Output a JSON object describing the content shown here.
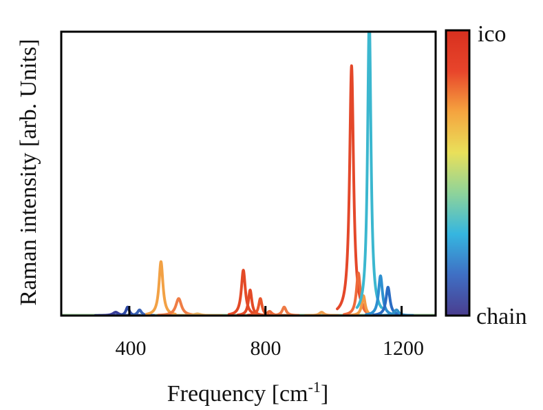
{
  "chart_data": {
    "type": "line",
    "xlabel": "Frequency [cm",
    "xlabel_sup": "-1",
    "xlabel_close": "]",
    "ylabel": "Raman intensity [arb. Units]",
    "xlim": [
      200,
      1300
    ],
    "ylim": [
      0,
      1.0
    ],
    "xticks": [
      400,
      800,
      1200
    ],
    "xtick_labels": [
      "400",
      "800",
      "1200"
    ],
    "color_scale": {
      "top_label": "ico",
      "bottom_label": "chain",
      "colors": [
        "#4a3d8f",
        "#3f6fc4",
        "#35b6e0",
        "#8ed39a",
        "#e9e05a",
        "#f5a43f",
        "#e8452b",
        "#d7301f"
      ]
    },
    "peaks": [
      {
        "x": 360,
        "h": 0.012,
        "w": 10,
        "color": "#3a3f9a"
      },
      {
        "x": 395,
        "h": 0.03,
        "w": 6,
        "color": "#2f4aa6"
      },
      {
        "x": 430,
        "h": 0.02,
        "w": 7,
        "color": "#3a63b6"
      },
      {
        "x": 493,
        "h": 0.19,
        "w": 7,
        "color": "#f2a145"
      },
      {
        "x": 545,
        "h": 0.06,
        "w": 10,
        "color": "#ef7d45"
      },
      {
        "x": 600,
        "h": 0.006,
        "w": 12,
        "color": "#e5b060"
      },
      {
        "x": 735,
        "h": 0.16,
        "w": 7,
        "color": "#e34a27"
      },
      {
        "x": 755,
        "h": 0.09,
        "w": 6,
        "color": "#e34a27"
      },
      {
        "x": 785,
        "h": 0.06,
        "w": 6,
        "color": "#e8562c"
      },
      {
        "x": 812,
        "h": 0.015,
        "w": 8,
        "color": "#ec6a3a"
      },
      {
        "x": 855,
        "h": 0.03,
        "w": 7,
        "color": "#ee7a45"
      },
      {
        "x": 965,
        "h": 0.012,
        "w": 8,
        "color": "#f0a050"
      },
      {
        "x": 1053,
        "h": 0.88,
        "w": 7,
        "color": "#e4482a"
      },
      {
        "x": 1073,
        "h": 0.15,
        "w": 7,
        "color": "#ee6a3a"
      },
      {
        "x": 1088,
        "h": 0.07,
        "w": 6,
        "color": "#f29a45"
      },
      {
        "x": 1105,
        "h": 1.05,
        "w": 6,
        "color": "#3bb7cf"
      },
      {
        "x": 1138,
        "h": 0.14,
        "w": 7,
        "color": "#2d8fd0"
      },
      {
        "x": 1160,
        "h": 0.1,
        "w": 7,
        "color": "#2a6cc3"
      },
      {
        "x": 1185,
        "h": 0.02,
        "w": 8,
        "color": "#3090c8"
      }
    ]
  }
}
